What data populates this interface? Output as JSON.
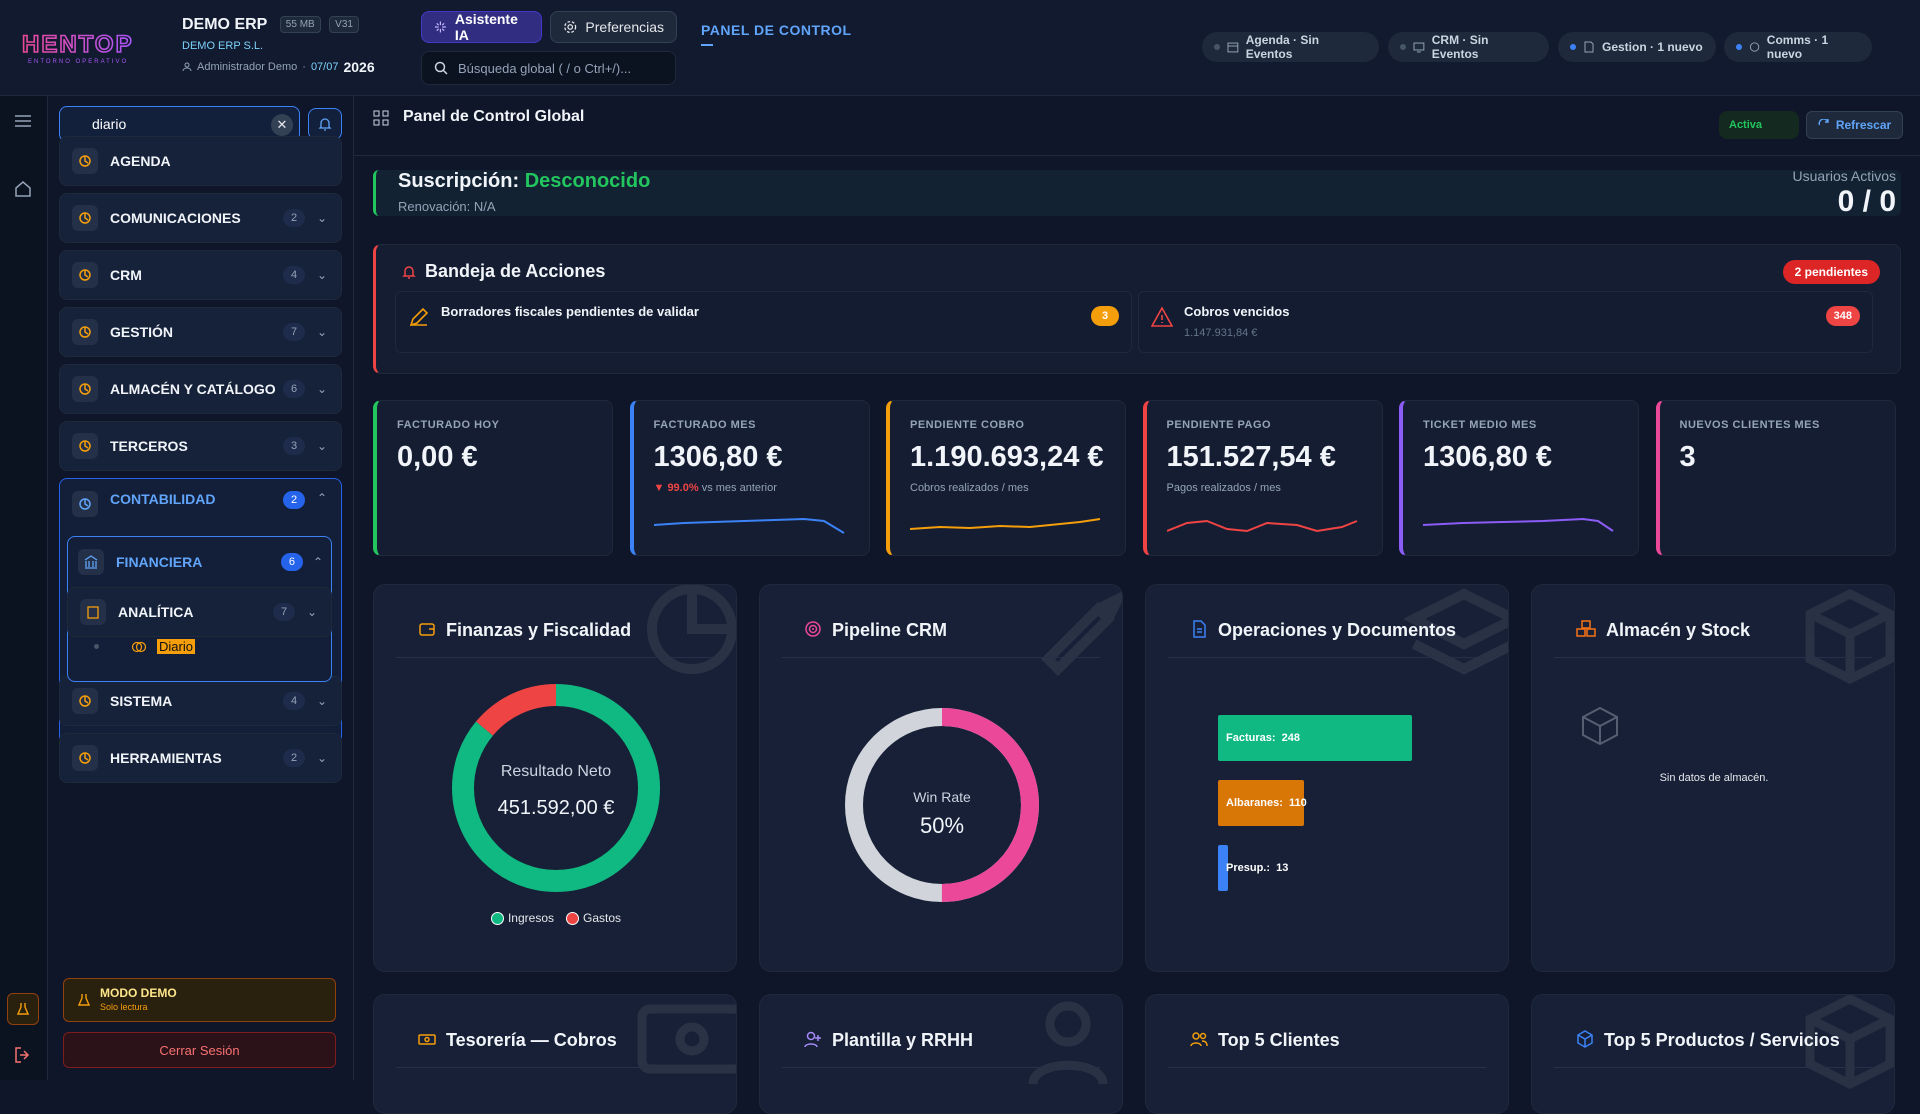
{
  "brand": {
    "logo_text": "HENTOP",
    "logo_sub": "ENTORNO OPERATIVO"
  },
  "company": {
    "name": "DEMO ERP",
    "size": "55 MB",
    "version": "V31",
    "legal": "DEMO ERP S.L.",
    "user": "Administrador Demo",
    "date": "07/07",
    "year": "2026"
  },
  "toolbar": {
    "ai_label": "Asistente IA",
    "pref_label": "Preferencias",
    "search_placeholder": "Búsqueda global ( / o Ctrl+/)...",
    "panel_title": "PANEL DE CONTROL"
  },
  "status": [
    {
      "label": "Agenda · Sin Eventos",
      "active": false,
      "icon": "calendar-icon"
    },
    {
      "label": "CRM · Sin Eventos",
      "active": false,
      "icon": "screen-icon"
    },
    {
      "label": "Gestion · 1 nuevo",
      "active": true,
      "icon": "document-icon"
    },
    {
      "label": "Comms · 1 nuevo",
      "active": true,
      "icon": "chat-icon"
    }
  ],
  "sidebar": {
    "search_value": "diario",
    "items": [
      {
        "label": "AGENDA",
        "count": ""
      },
      {
        "label": "COMUNICACIONES",
        "count": "2"
      },
      {
        "label": "CRM",
        "count": "4"
      },
      {
        "label": "GESTIÓN",
        "count": "7"
      },
      {
        "label": "ALMACÉN Y CATÁLOGO",
        "count": "6"
      },
      {
        "label": "TERCEROS",
        "count": "3"
      },
      {
        "label": "CONTABILIDAD",
        "count": "2"
      },
      {
        "label": "SISTEMA",
        "count": "4"
      },
      {
        "label": "HERRAMIENTAS",
        "count": "2"
      }
    ],
    "sub": {
      "financiera": "FINANCIERA",
      "financiera_count": "6",
      "contabilidad": "Contabilidad",
      "diario": "Diario",
      "analitica": "ANALÍTICA",
      "analitica_count": "7"
    },
    "mode_title": "MODO DEMO",
    "mode_sub": "Solo lectura",
    "logout": "Cerrar Sesión"
  },
  "main": {
    "title": "Panel de Control Global",
    "state": "Activa",
    "refresh": "Refrescar",
    "subscription_label": "Suscripción:",
    "subscription_value": "Desconocido",
    "renewal": "Renovación: N/A",
    "users_label": "Usuarios Activos",
    "users_value": "0 / 0",
    "inbox_title": "Bandeja de Acciones",
    "inbox_pending": "2 pendientes",
    "actions": [
      {
        "title": "Borradores fiscales pendientes de validar",
        "sub": "",
        "badge": "3",
        "color": "#f59e0b"
      },
      {
        "title": "Cobros vencidos",
        "sub": "1.147.931,84 €",
        "badge": "348",
        "color": "#ef4444"
      }
    ],
    "kpis": [
      {
        "label": "FACTURADO HOY",
        "value": "0,00 €",
        "sub": "",
        "sub_hl": "",
        "color": "#22c55e"
      },
      {
        "label": "FACTURADO MES",
        "value": "1306,80 €",
        "sub": "vs mes anterior",
        "sub_hl": "▼ 99.0%",
        "color": "#3b82f6"
      },
      {
        "label": "PENDIENTE COBRO",
        "value": "1.190.693,24 €",
        "sub": "Cobros realizados / mes",
        "sub_hl": "",
        "color": "#f59e0b"
      },
      {
        "label": "PENDIENTE PAGO",
        "value": "151.527,54 €",
        "sub": "Pagos realizados / mes",
        "sub_hl": "",
        "color": "#ef4444"
      },
      {
        "label": "TICKET MEDIO MES",
        "value": "1306,80 €",
        "sub": "",
        "sub_hl": "",
        "color": "#8b5cf6"
      },
      {
        "label": "NUEVOS CLIENTES MES",
        "value": "3",
        "sub": "",
        "sub_hl": "",
        "color": "#ec4899"
      }
    ],
    "cards": {
      "finanzas": "Finanzas y Fiscalidad",
      "pipeline": "Pipeline CRM",
      "operaciones": "Operaciones y Documentos",
      "almacen": "Almacén y Stock",
      "tesoreria": "Tesorería — Cobros",
      "plantilla": "Plantilla y RRHH",
      "top_clientes": "Top 5 Clientes",
      "top_productos": "Top 5 Productos / Servicios"
    },
    "finance_chart": {
      "center_label": "Resultado Neto",
      "center_value": "451.592,00 €",
      "legend_income": "Ingresos",
      "legend_expense": "Gastos",
      "income_share": 0.86,
      "expense_share": 0.14
    },
    "pipeline_chart": {
      "label": "Win Rate",
      "value": "50%",
      "rate": 0.5
    },
    "operations": [
      {
        "label": "Facturas:",
        "value": 248,
        "color": "#10b981"
      },
      {
        "label": "Albaranes:",
        "value": 110,
        "color": "#d97706"
      },
      {
        "label": "Presup.:",
        "value": 13,
        "color": "#3b82f6"
      }
    ],
    "stock_empty": "Sin datos de almacén."
  }
}
